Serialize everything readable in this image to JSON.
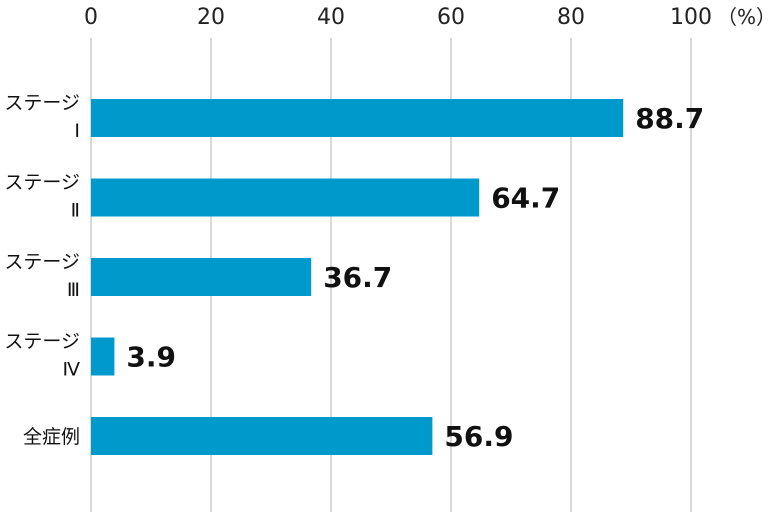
{
  "chart_data": {
    "type": "bar",
    "orientation": "horizontal",
    "categories": [
      {
        "line1": "ステージ",
        "line2": "Ⅰ"
      },
      {
        "line1": "ステージ",
        "line2": "Ⅱ"
      },
      {
        "line1": "ステージ",
        "line2": "Ⅲ"
      },
      {
        "line1": "ステージ",
        "line2": "Ⅳ"
      },
      {
        "line1": "全症例",
        "line2": ""
      }
    ],
    "values": [
      88.7,
      64.7,
      36.7,
      3.9,
      56.9
    ],
    "value_labels": [
      "88.7",
      "64.7",
      "36.7",
      "3.9",
      "56.9"
    ],
    "xlim": [
      0,
      100
    ],
    "xticks": [
      0,
      20,
      40,
      60,
      80,
      100
    ],
    "tick_labels": [
      "0",
      "20",
      "40",
      "60",
      "80",
      "100"
    ],
    "unit": "（%）",
    "grid": true,
    "bar_color": "#0099cc",
    "axis_position": "top"
  }
}
